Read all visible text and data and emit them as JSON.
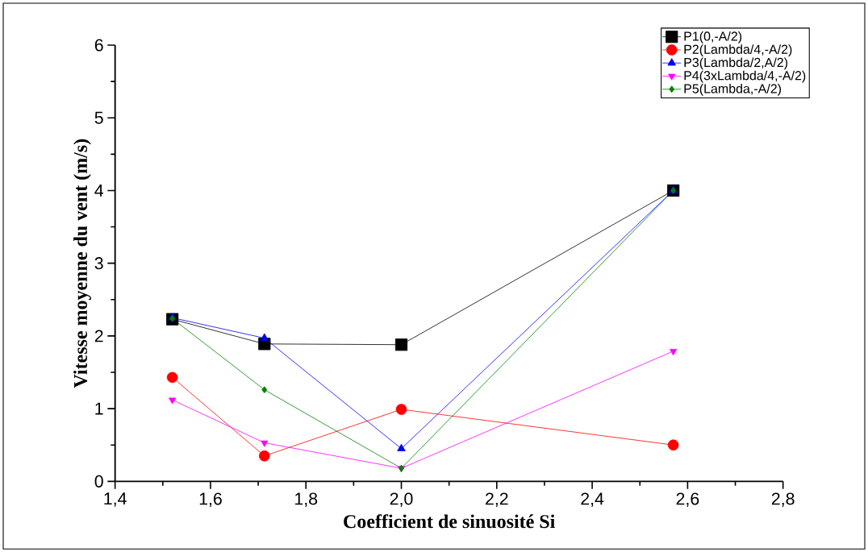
{
  "chart_data": {
    "type": "line",
    "xlabel": "Coefficient de sinuosité Si",
    "ylabel": "Vitesse moyenne du vent (m/s)",
    "x": [
      1.52,
      1.713,
      2.0,
      2.57
    ],
    "series": [
      {
        "name": "P1(0,-A/2)",
        "color": "#000000",
        "marker": "square",
        "values": [
          2.23,
          1.89,
          1.88,
          4.0
        ]
      },
      {
        "name": "P2(Lambda/4,-A/2)",
        "color": "#ff0000",
        "marker": "circle",
        "values": [
          1.43,
          0.35,
          0.99,
          0.5
        ]
      },
      {
        "name": "P3(Lambda/2,A/2)",
        "color": "#0000ff",
        "marker": "triangle",
        "values": [
          2.25,
          1.97,
          0.45,
          4.0
        ]
      },
      {
        "name": "P4(3xLambda/4,-A/2)",
        "color": "#ff00ff",
        "marker": "triangle-down",
        "values": [
          1.12,
          0.53,
          0.18,
          1.79
        ]
      },
      {
        "name": "P5(Lambda,-A/2)",
        "color": "#008000",
        "marker": "diamond",
        "values": [
          2.24,
          1.26,
          0.18,
          4.0
        ]
      }
    ],
    "xlim": [
      1.4,
      2.8
    ],
    "ylim": [
      0,
      6
    ],
    "xticks": [
      {
        "value": 1.4,
        "label": "1,4"
      },
      {
        "value": 1.6,
        "label": "1,6"
      },
      {
        "value": 1.8,
        "label": "1,8"
      },
      {
        "value": 2.0,
        "label": "2,0"
      },
      {
        "value": 2.2,
        "label": "2,2"
      },
      {
        "value": 2.4,
        "label": "2,4"
      },
      {
        "value": 2.6,
        "label": "2,6"
      },
      {
        "value": 2.8,
        "label": "2,8"
      }
    ],
    "yticks": [
      0,
      1,
      2,
      3,
      4,
      5,
      6
    ],
    "legend": "top right"
  }
}
